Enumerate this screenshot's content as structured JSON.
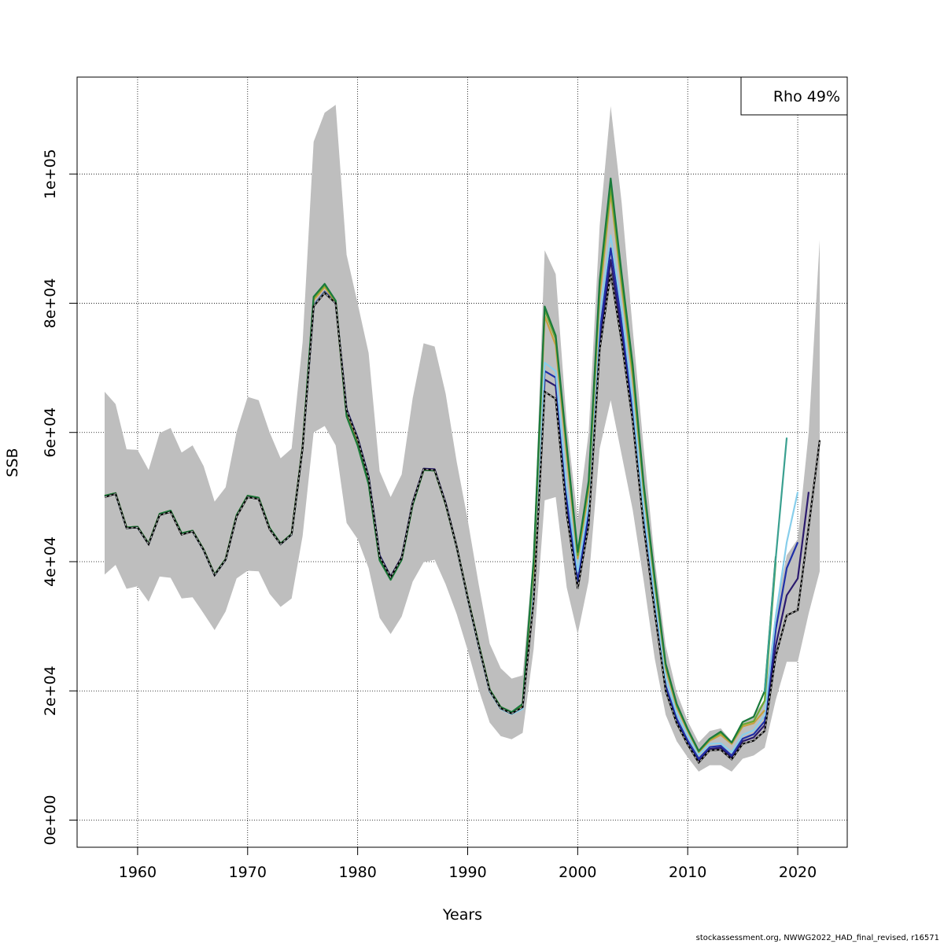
{
  "chart_data": {
    "type": "line",
    "xlabel": "Years",
    "ylabel": "SSB",
    "xlim": [
      1954.5,
      2024.5
    ],
    "ylim": [
      -4200,
      115000
    ],
    "x_ticks": [
      1960,
      1970,
      1980,
      1990,
      2000,
      2010,
      2020
    ],
    "y_ticks": [
      0,
      20000,
      40000,
      60000,
      80000,
      100000
    ],
    "y_tick_labels": [
      "0e+00",
      "2e+04",
      "4e+04",
      "6e+04",
      "8e+04",
      "1e+05"
    ],
    "grid": true,
    "legend": {
      "position": "top-right",
      "text": "Rho 49%"
    },
    "colors": {
      "band": "#bebebe",
      "base_line": "#000000",
      "retro": [
        "#2b1a6e",
        "#1f2fa8",
        "#87ceeb",
        "#c8a040",
        "#6aa832",
        "#1a7a3c",
        "#3aa090"
      ]
    },
    "confidence_band": {
      "years": [
        1957,
        1958,
        1959,
        1960,
        1961,
        1962,
        1963,
        1964,
        1965,
        1966,
        1967,
        1968,
        1969,
        1970,
        1971,
        1972,
        1973,
        1974,
        1975,
        1976,
        1977,
        1978,
        1979,
        1980,
        1981,
        1982,
        1983,
        1984,
        1985,
        1986,
        1987,
        1988,
        1989,
        1990,
        1991,
        1992,
        1993,
        1994,
        1995,
        1996,
        1997,
        1998,
        1999,
        2000,
        2001,
        2002,
        2003,
        2004,
        2005,
        2006,
        2007,
        2008,
        2009,
        2010,
        2011,
        2012,
        2013,
        2014,
        2015,
        2016,
        2017,
        2018,
        2019,
        2020,
        2021,
        2022
      ],
      "lower": [
        38000,
        39500,
        35800,
        36200,
        33800,
        37700,
        37500,
        34300,
        34500,
        32000,
        29400,
        32300,
        37400,
        38600,
        38500,
        35000,
        33000,
        34300,
        44000,
        60000,
        61000,
        58000,
        46000,
        43500,
        39000,
        31300,
        28800,
        31500,
        36900,
        39900,
        40300,
        36500,
        31900,
        26300,
        20200,
        15100,
        13000,
        12500,
        13500,
        26500,
        49500,
        50000,
        36000,
        28800,
        37000,
        57500,
        65000,
        56500,
        48000,
        37000,
        25000,
        16300,
        12200,
        9700,
        7500,
        8500,
        8500,
        7500,
        9500,
        10000,
        11200,
        18600,
        24500,
        24500,
        32000,
        38500
      ],
      "upper": [
        66300,
        64400,
        57400,
        57300,
        54200,
        59900,
        60700,
        56900,
        58000,
        54800,
        49300,
        51500,
        60100,
        65500,
        65000,
        60000,
        56000,
        57500,
        74000,
        105000,
        109500,
        110700,
        87500,
        80000,
        72300,
        54000,
        50000,
        53500,
        65300,
        73800,
        73300,
        66000,
        55500,
        46500,
        36500,
        27300,
        23500,
        21900,
        22400,
        41500,
        88200,
        84500,
        61500,
        46500,
        60000,
        92000,
        110500,
        95500,
        76000,
        57500,
        40300,
        27000,
        19800,
        15300,
        12000,
        13800,
        14200,
        12200,
        15300,
        16200,
        18700,
        32500,
        41000,
        43500,
        60000,
        89800
      ]
    },
    "series": [
      {
        "name": "",
        "color": "#000000",
        "dashed": true,
        "x": [
          1957,
          1958,
          1959,
          1960,
          1961,
          1962,
          1963,
          1964,
          1965,
          1966,
          1967,
          1968,
          1969,
          1970,
          1971,
          1972,
          1973,
          1974,
          1975,
          1976,
          1977,
          1978,
          1979,
          1980,
          1981,
          1982,
          1983,
          1984,
          1985,
          1986,
          1987,
          1988,
          1989,
          1990,
          1991,
          1992,
          1993,
          1994,
          1995,
          1996,
          1997,
          1998,
          1999,
          2000,
          2001,
          2002,
          2003,
          2004,
          2005,
          2006,
          2007,
          2008,
          2009,
          2010,
          2011,
          2012,
          2013,
          2014,
          2015,
          2016,
          2017,
          2018,
          2019,
          2020,
          2021,
          2022
        ],
        "y": [
          50000,
          50500,
          45200,
          45300,
          42700,
          47200,
          47700,
          44200,
          44700,
          41800,
          37900,
          40300,
          47000,
          50000,
          49700,
          45000,
          42700,
          44200,
          57600,
          79500,
          81600,
          80000,
          63400,
          59000,
          53000,
          40800,
          37600,
          40600,
          49100,
          54300,
          54200,
          49000,
          42300,
          34400,
          27000,
          20000,
          17300,
          16500,
          17500,
          34000,
          66300,
          65200,
          47400,
          35800,
          45700,
          72800,
          84700,
          74000,
          61700,
          45400,
          32200,
          20000,
          15000,
          11700,
          8900,
          10800,
          10900,
          9400,
          11800,
          12300,
          13800,
          25400,
          31700,
          32500,
          45400,
          58800
        ]
      },
      {
        "name": "",
        "color": "#2b1a6e",
        "x": [
          1957,
          1958,
          1959,
          1960,
          1961,
          1962,
          1963,
          1964,
          1965,
          1966,
          1967,
          1968,
          1969,
          1970,
          1971,
          1972,
          1973,
          1974,
          1975,
          1976,
          1977,
          1978,
          1979,
          1980,
          1981,
          1982,
          1983,
          1984,
          1985,
          1986,
          1987,
          1988,
          1989,
          1990,
          1991,
          1992,
          1993,
          1994,
          1995,
          1996,
          1997,
          1998,
          1999,
          2000,
          2001,
          2002,
          2003,
          2004,
          2005,
          2006,
          2007,
          2008,
          2009,
          2010,
          2011,
          2012,
          2013,
          2014,
          2015,
          2016,
          2017,
          2018,
          2019,
          2020,
          2021
        ],
        "y": [
          50200,
          50600,
          45300,
          45400,
          42800,
          47400,
          47900,
          44400,
          44800,
          41900,
          38000,
          40400,
          47200,
          50200,
          49900,
          45200,
          42800,
          44300,
          57800,
          79700,
          81800,
          80100,
          63600,
          59200,
          53200,
          41000,
          37700,
          40700,
          49200,
          54400,
          54300,
          49100,
          42400,
          34500,
          27100,
          20100,
          17400,
          16600,
          17600,
          34500,
          68200,
          67200,
          48600,
          36300,
          46500,
          73800,
          86700,
          75500,
          62500,
          46000,
          32700,
          20300,
          15200,
          11900,
          9100,
          11000,
          11200,
          9700,
          12200,
          12800,
          14700,
          27000,
          34800,
          37400,
          50800
        ]
      },
      {
        "name": "",
        "color": "#1f2fa8",
        "x": [
          1957,
          1958,
          1959,
          1960,
          1961,
          1962,
          1963,
          1964,
          1965,
          1966,
          1967,
          1968,
          1969,
          1970,
          1971,
          1972,
          1973,
          1974,
          1975,
          1976,
          1977,
          1978,
          1979,
          1980,
          1981,
          1982,
          1983,
          1984,
          1985,
          1986,
          1987,
          1988,
          1989,
          1990,
          1991,
          1992,
          1993,
          1994,
          1995,
          1996,
          1997,
          1998,
          1999,
          2000,
          2001,
          2002,
          2003,
          2004,
          2005,
          2006,
          2007,
          2008,
          2009,
          2010,
          2011,
          2012,
          2013,
          2014,
          2015,
          2016,
          2017,
          2018,
          2019,
          2020
        ],
        "y": [
          50100,
          50500,
          45200,
          45300,
          42700,
          47300,
          47800,
          44300,
          44700,
          41800,
          37900,
          40300,
          47100,
          50100,
          49800,
          45100,
          42700,
          44200,
          57700,
          79600,
          81700,
          80000,
          63500,
          59100,
          53100,
          40900,
          37600,
          40600,
          49100,
          54300,
          54200,
          49000,
          42300,
          34400,
          27000,
          20000,
          17300,
          16500,
          17400,
          35200,
          69500,
          68500,
          49800,
          37000,
          47500,
          75500,
          88500,
          77000,
          63500,
          46800,
          33300,
          20800,
          15700,
          12300,
          9500,
          11300,
          11500,
          10000,
          12600,
          13300,
          15300,
          29500,
          39000,
          43000
        ]
      },
      {
        "name": "",
        "color": "#87ceeb",
        "x": [
          1957,
          1958,
          1959,
          1960,
          1961,
          1962,
          1963,
          1964,
          1965,
          1966,
          1967,
          1968,
          1969,
          1970,
          1971,
          1972,
          1973,
          1974,
          1975,
          1976,
          1977,
          1978,
          1979,
          1980,
          1981,
          1982,
          1983,
          1984,
          1985,
          1986,
          1987,
          1988,
          1989,
          1990,
          1991,
          1992,
          1993,
          1994,
          1995,
          1996,
          1997,
          1998,
          1999,
          2000,
          2001,
          2002,
          2003,
          2004,
          2005,
          2006,
          2007,
          2008,
          2009,
          2010,
          2011,
          2012,
          2013,
          2014,
          2015,
          2016,
          2017,
          2018,
          2019,
          2020
        ],
        "y": [
          50100,
          50500,
          45200,
          45300,
          42700,
          47300,
          47800,
          44300,
          44700,
          41800,
          37900,
          40300,
          47100,
          50100,
          49800,
          45100,
          42700,
          44200,
          57700,
          79600,
          81700,
          80000,
          63300,
          58900,
          52900,
          40700,
          37500,
          40500,
          49000,
          54200,
          54100,
          48900,
          42200,
          34300,
          26900,
          19900,
          17200,
          16400,
          17200,
          36500,
          70800,
          69500,
          51500,
          38500,
          49000,
          78000,
          90500,
          79000,
          65000,
          48000,
          34500,
          22000,
          16500,
          13000,
          10100,
          11800,
          11900,
          10500,
          13200,
          13900,
          16200,
          31500,
          43000,
          50800
        ]
      },
      {
        "name": "",
        "color": "#c8a040",
        "x": [
          1957,
          1958,
          1959,
          1960,
          1961,
          1962,
          1963,
          1964,
          1965,
          1966,
          1967,
          1968,
          1969,
          1970,
          1971,
          1972,
          1973,
          1974,
          1975,
          1976,
          1977,
          1978,
          1979,
          1980,
          1981,
          1982,
          1983,
          1984,
          1985,
          1986,
          1987,
          1988,
          1989,
          1990,
          1991,
          1992,
          1993,
          1994,
          1995,
          1996,
          1997,
          1998,
          1999,
          2000,
          2001,
          2002,
          2003,
          2004,
          2005,
          2006,
          2007,
          2008,
          2009,
          2010,
          2011,
          2012,
          2013,
          2014,
          2015,
          2016,
          2017
        ],
        "y": [
          50200,
          50600,
          45300,
          45400,
          42800,
          47400,
          47900,
          44400,
          44800,
          41900,
          38000,
          40400,
          47200,
          50200,
          49900,
          45200,
          42800,
          44300,
          57800,
          80500,
          82500,
          80200,
          62800,
          58300,
          52300,
          40400,
          37300,
          40400,
          48900,
          54200,
          54100,
          48900,
          42300,
          34500,
          27200,
          20200,
          17500,
          16700,
          17800,
          39000,
          78000,
          73500,
          56500,
          40500,
          51000,
          81000,
          97000,
          82500,
          68500,
          51000,
          36500,
          23500,
          17500,
          13800,
          10500,
          12300,
          13200,
          11800,
          14500,
          15000,
          17000
        ]
      },
      {
        "name": "",
        "color": "#6aa832",
        "x": [
          1957,
          1958,
          1959,
          1960,
          1961,
          1962,
          1963,
          1964,
          1965,
          1966,
          1967,
          1968,
          1969,
          1970,
          1971,
          1972,
          1973,
          1974,
          1975,
          1976,
          1977,
          1978,
          1979,
          1980,
          1981,
          1982,
          1983,
          1984,
          1985,
          1986,
          1987,
          1988,
          1989,
          1990,
          1991,
          1992,
          1993,
          1994,
          1995,
          1996,
          1997,
          1998,
          1999,
          2000,
          2001,
          2002,
          2003,
          2004,
          2005,
          2006,
          2007,
          2008,
          2009,
          2010,
          2011,
          2012,
          2013,
          2014,
          2015,
          2016,
          2017,
          2018
        ],
        "y": [
          50200,
          50600,
          45300,
          45400,
          42800,
          47400,
          47900,
          44400,
          44800,
          41900,
          38000,
          40400,
          47200,
          50200,
          49900,
          45200,
          42800,
          44300,
          57800,
          80800,
          82800,
          80300,
          62500,
          58000,
          52000,
          40200,
          37200,
          40300,
          48800,
          54200,
          54100,
          48900,
          42300,
          34500,
          27200,
          20200,
          17500,
          16700,
          17900,
          40000,
          79000,
          74500,
          57500,
          41000,
          52000,
          82500,
          98000,
          83500,
          69500,
          51500,
          37000,
          24000,
          17800,
          14000,
          10600,
          12500,
          13500,
          12000,
          14800,
          15300,
          18500,
          40000
        ]
      },
      {
        "name": "",
        "color": "#1a7a3c",
        "x": [
          1957,
          1958,
          1959,
          1960,
          1961,
          1962,
          1963,
          1964,
          1965,
          1966,
          1967,
          1968,
          1969,
          1970,
          1971,
          1972,
          1973,
          1974,
          1975,
          1976,
          1977,
          1978,
          1979,
          1980,
          1981,
          1982,
          1983,
          1984,
          1985,
          1986,
          1987,
          1988,
          1989,
          1990,
          1991,
          1992,
          1993,
          1994,
          1995,
          1996,
          1997,
          1998,
          1999,
          2000,
          2001,
          2002,
          2003,
          2004,
          2005,
          2006,
          2007,
          2008,
          2009,
          2010,
          2011,
          2012,
          2013,
          2014,
          2015,
          2016,
          2017,
          2018
        ],
        "y": [
          50200,
          50600,
          45300,
          45400,
          42800,
          47400,
          47900,
          44400,
          44800,
          41900,
          38000,
          40400,
          47200,
          50200,
          49900,
          45200,
          42800,
          44300,
          57800,
          81000,
          83000,
          80400,
          62500,
          58000,
          52000,
          40200,
          37200,
          40300,
          48800,
          54200,
          54100,
          48900,
          42300,
          34500,
          27200,
          20200,
          17500,
          16700,
          18000,
          40500,
          79500,
          75000,
          58000,
          41500,
          52500,
          83500,
          99300,
          84500,
          70500,
          52000,
          37500,
          24200,
          18000,
          14100,
          10700,
          12600,
          13700,
          12000,
          15200,
          16000,
          20000,
          40800
        ]
      },
      {
        "name": "",
        "color": "#3aa090",
        "x": [
          2017,
          2018,
          2019
        ],
        "y": [
          19800,
          40500,
          59200
        ]
      }
    ]
  },
  "footer": "stockassessment.org, NWWG2022_HAD_final_revised, r16571"
}
